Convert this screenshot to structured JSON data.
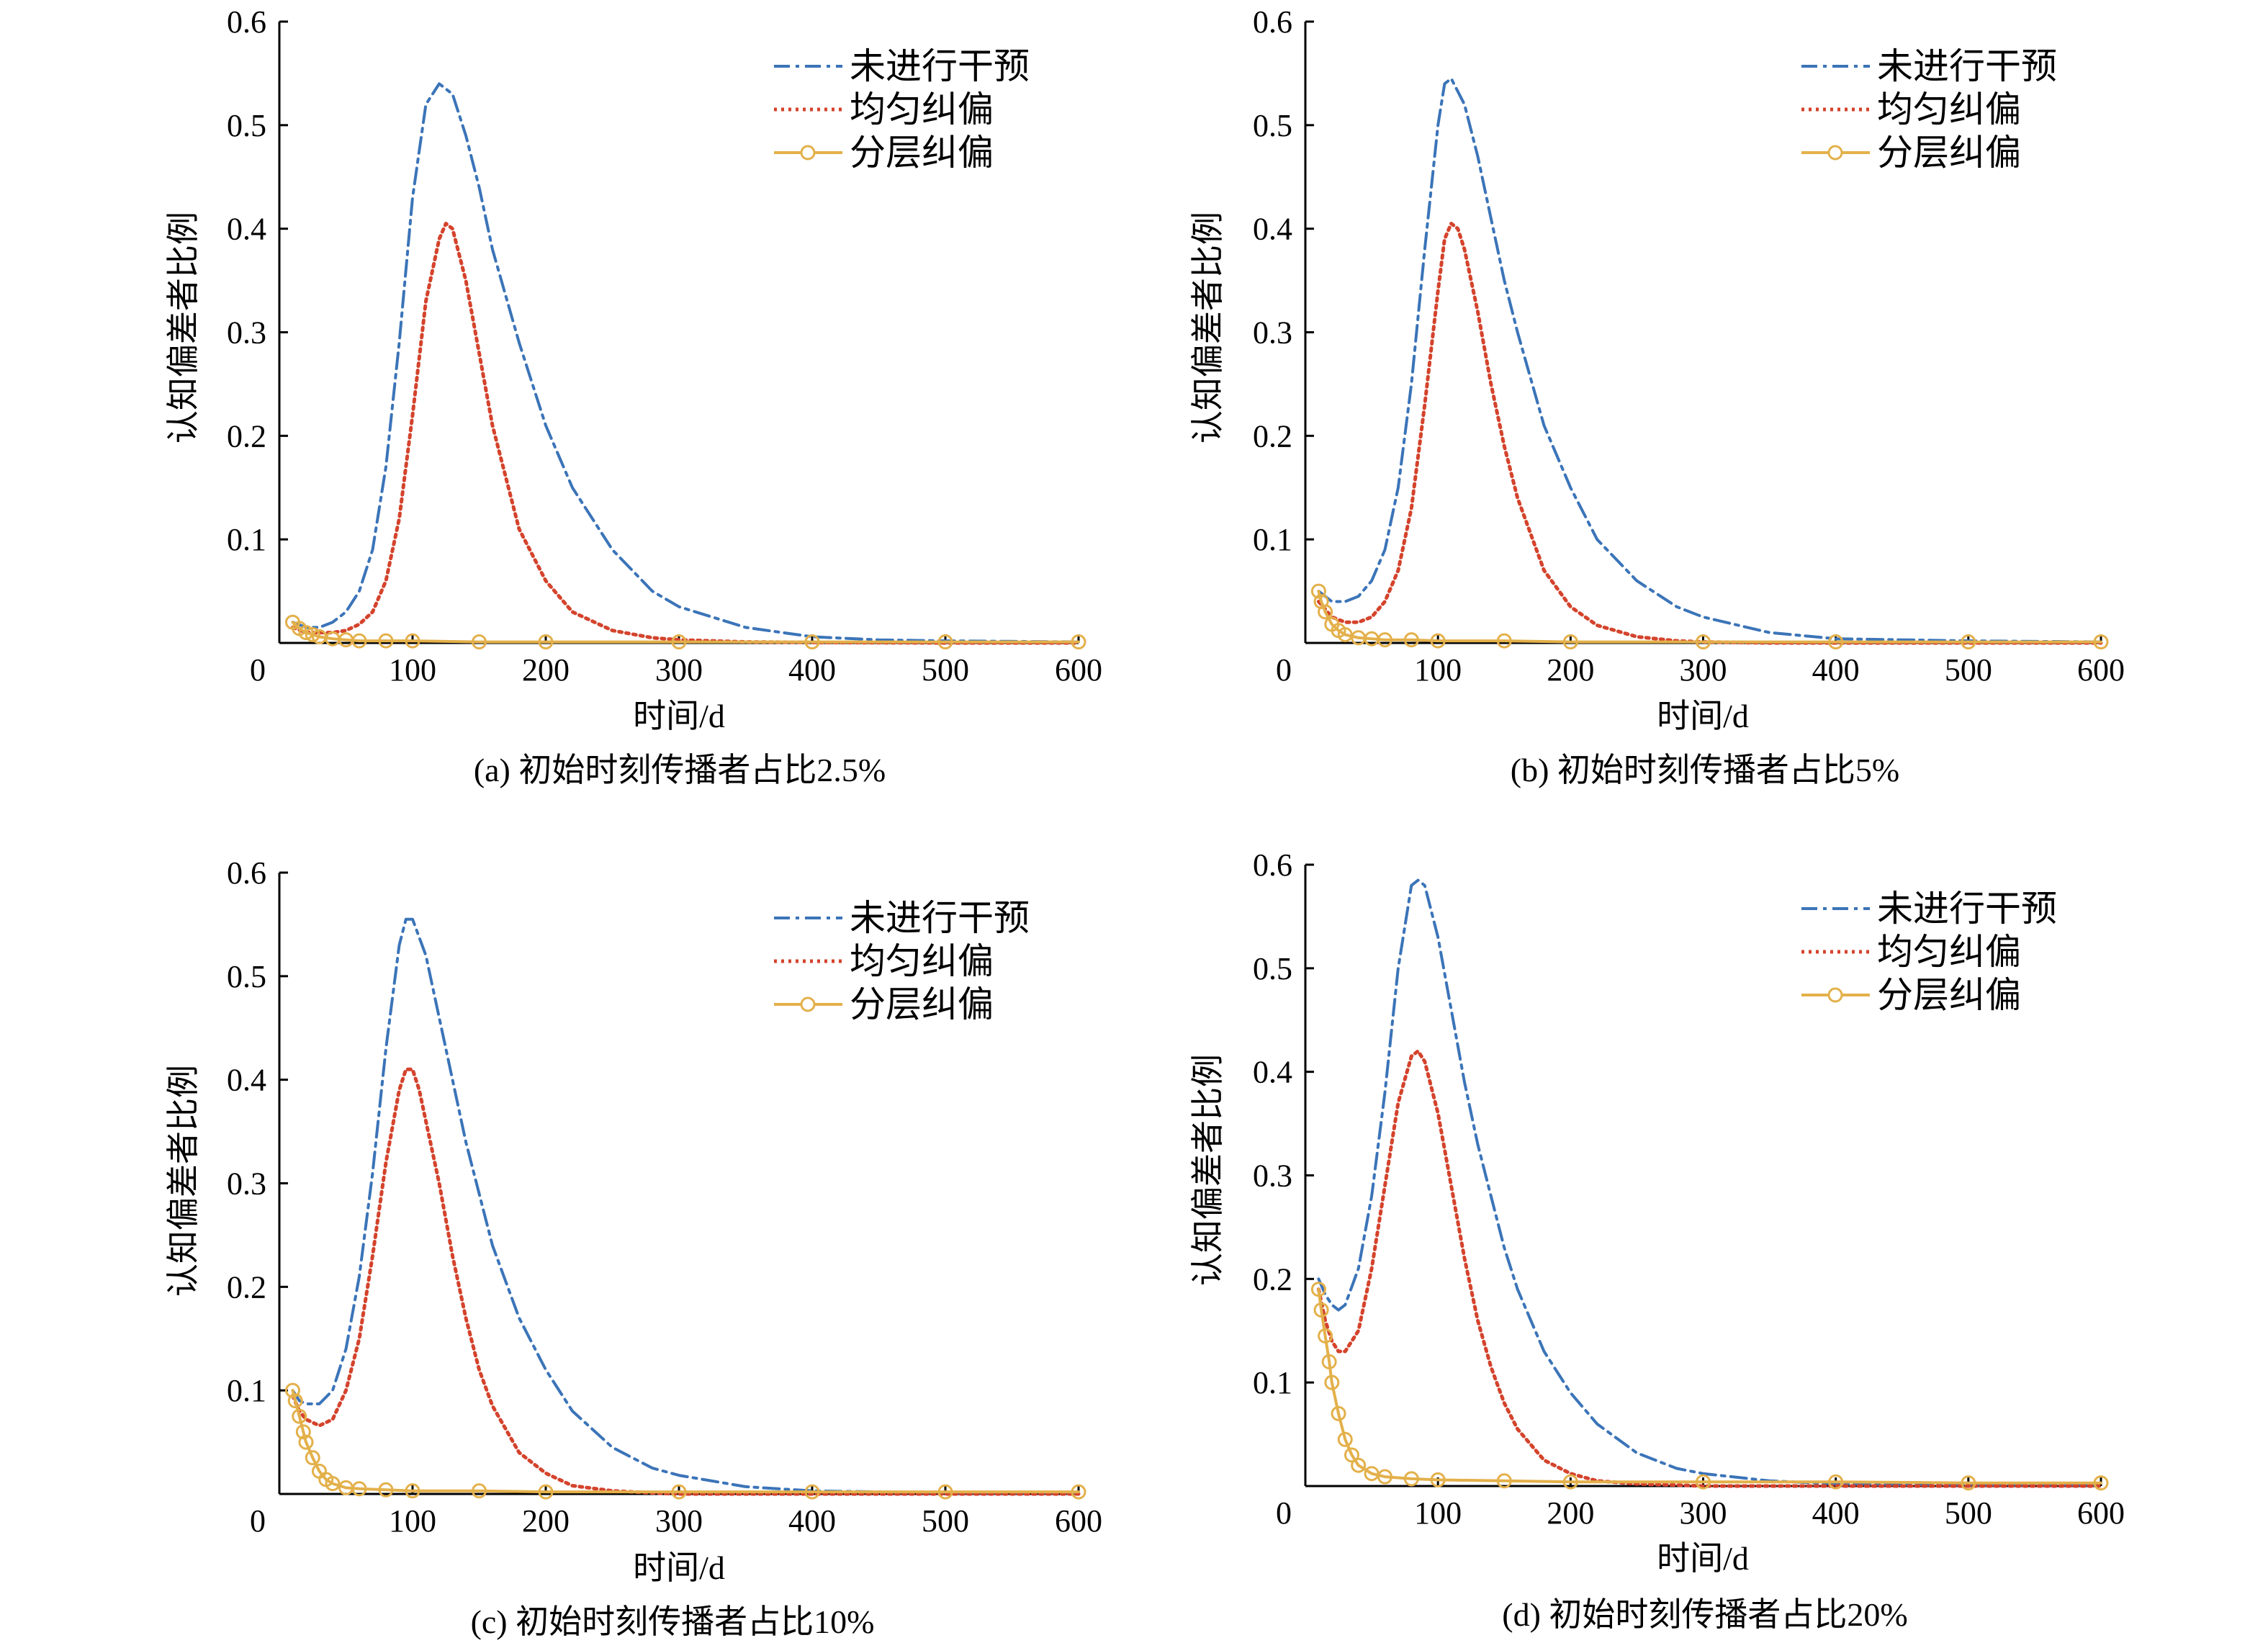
{
  "colors": {
    "no_intervention": "#3b74b8",
    "uniform": "#d4432c",
    "layered": "#e3b04a",
    "axis": "#000000"
  },
  "legend": [
    "未进行干预",
    "均匀纠偏",
    "分层纠偏"
  ],
  "chart_data": [
    {
      "type": "line",
      "caption": "(a) 初始时刻传播者占比2.5%",
      "xlabel": "时间/d",
      "ylabel": "认知偏差者比例",
      "xlim": [
        0,
        600
      ],
      "ylim": [
        0,
        0.6
      ],
      "x_ticks": [
        0,
        100,
        200,
        300,
        400,
        500,
        600
      ],
      "y_ticks": [
        0.1,
        0.2,
        0.3,
        0.4,
        0.5,
        0.6
      ],
      "legend_position": "top-right",
      "series": [
        {
          "name": "未进行干预",
          "style": "dash-dot",
          "x": [
            10,
            20,
            30,
            40,
            50,
            60,
            70,
            80,
            90,
            100,
            110,
            120,
            130,
            140,
            150,
            160,
            180,
            200,
            220,
            250,
            280,
            300,
            350,
            400,
            450,
            500,
            600
          ],
          "y": [
            0.02,
            0.015,
            0.015,
            0.02,
            0.03,
            0.05,
            0.09,
            0.17,
            0.29,
            0.43,
            0.52,
            0.54,
            0.53,
            0.49,
            0.44,
            0.38,
            0.29,
            0.21,
            0.15,
            0.09,
            0.05,
            0.035,
            0.015,
            0.006,
            0.003,
            0.002,
            0.001
          ]
        },
        {
          "name": "均匀纠偏",
          "style": "dotted",
          "x": [
            10,
            20,
            30,
            40,
            50,
            60,
            70,
            80,
            90,
            100,
            110,
            120,
            125,
            130,
            140,
            150,
            160,
            180,
            200,
            220,
            250,
            280,
            300,
            350,
            400,
            500,
            600
          ],
          "y": [
            0.015,
            0.01,
            0.01,
            0.01,
            0.012,
            0.018,
            0.03,
            0.06,
            0.12,
            0.22,
            0.33,
            0.39,
            0.405,
            0.4,
            0.35,
            0.28,
            0.21,
            0.11,
            0.06,
            0.03,
            0.012,
            0.005,
            0.003,
            0.001,
            0.0005,
            0,
            0
          ]
        },
        {
          "name": "分层纠偏",
          "style": "circle-markers",
          "x": [
            10,
            15,
            20,
            25,
            30,
            40,
            50,
            60,
            80,
            100,
            150,
            200,
            300,
            400,
            500,
            600
          ],
          "y": [
            0.02,
            0.014,
            0.01,
            0.008,
            0.006,
            0.004,
            0.003,
            0.002,
            0.002,
            0.002,
            0.001,
            0.001,
            0.001,
            0.001,
            0.001,
            0.001
          ]
        }
      ]
    },
    {
      "type": "line",
      "caption": "(b) 初始时刻传播者占比5%",
      "xlabel": "时间/d",
      "ylabel": "认知偏差者比例",
      "xlim": [
        0,
        600
      ],
      "ylim": [
        0,
        0.6
      ],
      "x_ticks": [
        0,
        100,
        200,
        300,
        400,
        500,
        600
      ],
      "y_ticks": [
        0.1,
        0.2,
        0.3,
        0.4,
        0.5,
        0.6
      ],
      "legend_position": "top-right",
      "series": [
        {
          "name": "未进行干预",
          "style": "dash-dot",
          "x": [
            10,
            20,
            30,
            40,
            50,
            60,
            70,
            80,
            90,
            100,
            105,
            110,
            120,
            130,
            140,
            150,
            160,
            180,
            200,
            220,
            250,
            280,
            300,
            350,
            400,
            500,
            600
          ],
          "y": [
            0.05,
            0.04,
            0.04,
            0.045,
            0.06,
            0.09,
            0.15,
            0.25,
            0.38,
            0.5,
            0.54,
            0.545,
            0.52,
            0.47,
            0.41,
            0.35,
            0.3,
            0.21,
            0.15,
            0.1,
            0.06,
            0.035,
            0.025,
            0.01,
            0.004,
            0.002,
            0.001
          ]
        },
        {
          "name": "均匀纠偏",
          "style": "dotted",
          "x": [
            10,
            20,
            30,
            40,
            50,
            60,
            70,
            80,
            90,
            100,
            105,
            110,
            115,
            120,
            130,
            140,
            150,
            160,
            180,
            200,
            220,
            250,
            280,
            300,
            350,
            400,
            600
          ],
          "y": [
            0.04,
            0.025,
            0.02,
            0.02,
            0.025,
            0.04,
            0.07,
            0.13,
            0.23,
            0.34,
            0.39,
            0.405,
            0.4,
            0.38,
            0.32,
            0.25,
            0.19,
            0.14,
            0.07,
            0.035,
            0.017,
            0.006,
            0.002,
            0.001,
            0,
            0,
            0
          ]
        },
        {
          "name": "分层纠偏",
          "style": "circle-markers",
          "x": [
            10,
            12,
            15,
            20,
            25,
            30,
            40,
            50,
            60,
            80,
            100,
            150,
            200,
            300,
            400,
            500,
            600
          ],
          "y": [
            0.05,
            0.04,
            0.03,
            0.018,
            0.012,
            0.008,
            0.005,
            0.004,
            0.003,
            0.003,
            0.002,
            0.002,
            0.001,
            0.001,
            0.001,
            0.001,
            0.001
          ]
        }
      ]
    },
    {
      "type": "line",
      "caption": "(c)  初始时刻传播者占比10%",
      "xlabel": "时间/d",
      "ylabel": "认知偏差者比例",
      "xlim": [
        0,
        600
      ],
      "ylim": [
        0,
        0.6
      ],
      "x_ticks": [
        0,
        100,
        200,
        300,
        400,
        500,
        600
      ],
      "y_ticks": [
        0.1,
        0.2,
        0.3,
        0.4,
        0.5,
        0.6
      ],
      "legend_position": "top-right",
      "series": [
        {
          "name": "未进行干预",
          "style": "dash-dot",
          "x": [
            10,
            15,
            20,
            30,
            40,
            50,
            60,
            70,
            80,
            90,
            95,
            100,
            110,
            120,
            130,
            140,
            150,
            160,
            180,
            200,
            220,
            250,
            280,
            300,
            350,
            400,
            500,
            600
          ],
          "y": [
            0.1,
            0.09,
            0.087,
            0.087,
            0.1,
            0.14,
            0.21,
            0.31,
            0.43,
            0.53,
            0.555,
            0.555,
            0.52,
            0.46,
            0.4,
            0.34,
            0.29,
            0.24,
            0.17,
            0.12,
            0.08,
            0.045,
            0.025,
            0.018,
            0.007,
            0.003,
            0.001,
            0.001
          ]
        },
        {
          "name": "均匀纠偏",
          "style": "dotted",
          "x": [
            10,
            15,
            20,
            30,
            40,
            50,
            60,
            70,
            80,
            90,
            95,
            100,
            105,
            110,
            120,
            130,
            140,
            150,
            160,
            180,
            200,
            220,
            250,
            280,
            300,
            350,
            400,
            600
          ],
          "y": [
            0.095,
            0.08,
            0.072,
            0.066,
            0.072,
            0.1,
            0.15,
            0.23,
            0.32,
            0.39,
            0.41,
            0.41,
            0.39,
            0.36,
            0.3,
            0.23,
            0.17,
            0.12,
            0.085,
            0.04,
            0.02,
            0.008,
            0.003,
            0.001,
            0,
            0,
            0,
            0
          ]
        },
        {
          "name": "分层纠偏",
          "style": "circle-markers",
          "x": [
            10,
            12,
            15,
            18,
            20,
            25,
            30,
            35,
            40,
            50,
            60,
            80,
            100,
            150,
            200,
            300,
            400,
            500,
            600
          ],
          "y": [
            0.1,
            0.09,
            0.075,
            0.06,
            0.05,
            0.035,
            0.022,
            0.014,
            0.01,
            0.006,
            0.005,
            0.004,
            0.003,
            0.003,
            0.002,
            0.002,
            0.002,
            0.002,
            0.002
          ]
        }
      ]
    },
    {
      "type": "line",
      "caption": "(d) 初始时刻传播者占比20%",
      "xlabel": "时间/d",
      "ylabel": "认知偏差者比例",
      "xlim": [
        0,
        600
      ],
      "ylim": [
        0,
        0.6
      ],
      "x_ticks": [
        0,
        100,
        200,
        300,
        400,
        500,
        600
      ],
      "y_ticks": [
        0.1,
        0.2,
        0.3,
        0.4,
        0.5,
        0.6
      ],
      "legend_position": "top-right",
      "series": [
        {
          "name": "未进行干预",
          "style": "dash-dot",
          "x": [
            10,
            15,
            20,
            25,
            30,
            40,
            50,
            60,
            70,
            80,
            85,
            90,
            100,
            110,
            120,
            130,
            140,
            150,
            160,
            180,
            200,
            220,
            250,
            280,
            300,
            350,
            400,
            500,
            600
          ],
          "y": [
            0.2,
            0.185,
            0.175,
            0.17,
            0.175,
            0.21,
            0.28,
            0.38,
            0.5,
            0.58,
            0.585,
            0.58,
            0.53,
            0.46,
            0.39,
            0.33,
            0.28,
            0.23,
            0.19,
            0.13,
            0.09,
            0.06,
            0.032,
            0.017,
            0.012,
            0.005,
            0.002,
            0.001,
            0.001
          ]
        },
        {
          "name": "均匀纠偏",
          "style": "dotted",
          "x": [
            10,
            15,
            20,
            25,
            30,
            40,
            50,
            60,
            70,
            80,
            85,
            90,
            100,
            110,
            120,
            130,
            140,
            150,
            160,
            180,
            200,
            220,
            250,
            280,
            300,
            350,
            400,
            600
          ],
          "y": [
            0.19,
            0.16,
            0.14,
            0.13,
            0.13,
            0.15,
            0.21,
            0.29,
            0.37,
            0.415,
            0.42,
            0.41,
            0.36,
            0.29,
            0.22,
            0.16,
            0.115,
            0.08,
            0.055,
            0.025,
            0.012,
            0.005,
            0.002,
            0.001,
            0,
            0,
            0,
            0
          ]
        },
        {
          "name": "分层纠偏",
          "style": "circle-markers",
          "x": [
            10,
            12,
            15,
            18,
            20,
            25,
            30,
            35,
            40,
            50,
            60,
            80,
            100,
            150,
            200,
            300,
            400,
            500,
            600
          ],
          "y": [
            0.19,
            0.17,
            0.145,
            0.12,
            0.1,
            0.07,
            0.045,
            0.03,
            0.02,
            0.012,
            0.009,
            0.007,
            0.006,
            0.005,
            0.004,
            0.004,
            0.004,
            0.003,
            0.003
          ]
        }
      ]
    }
  ]
}
